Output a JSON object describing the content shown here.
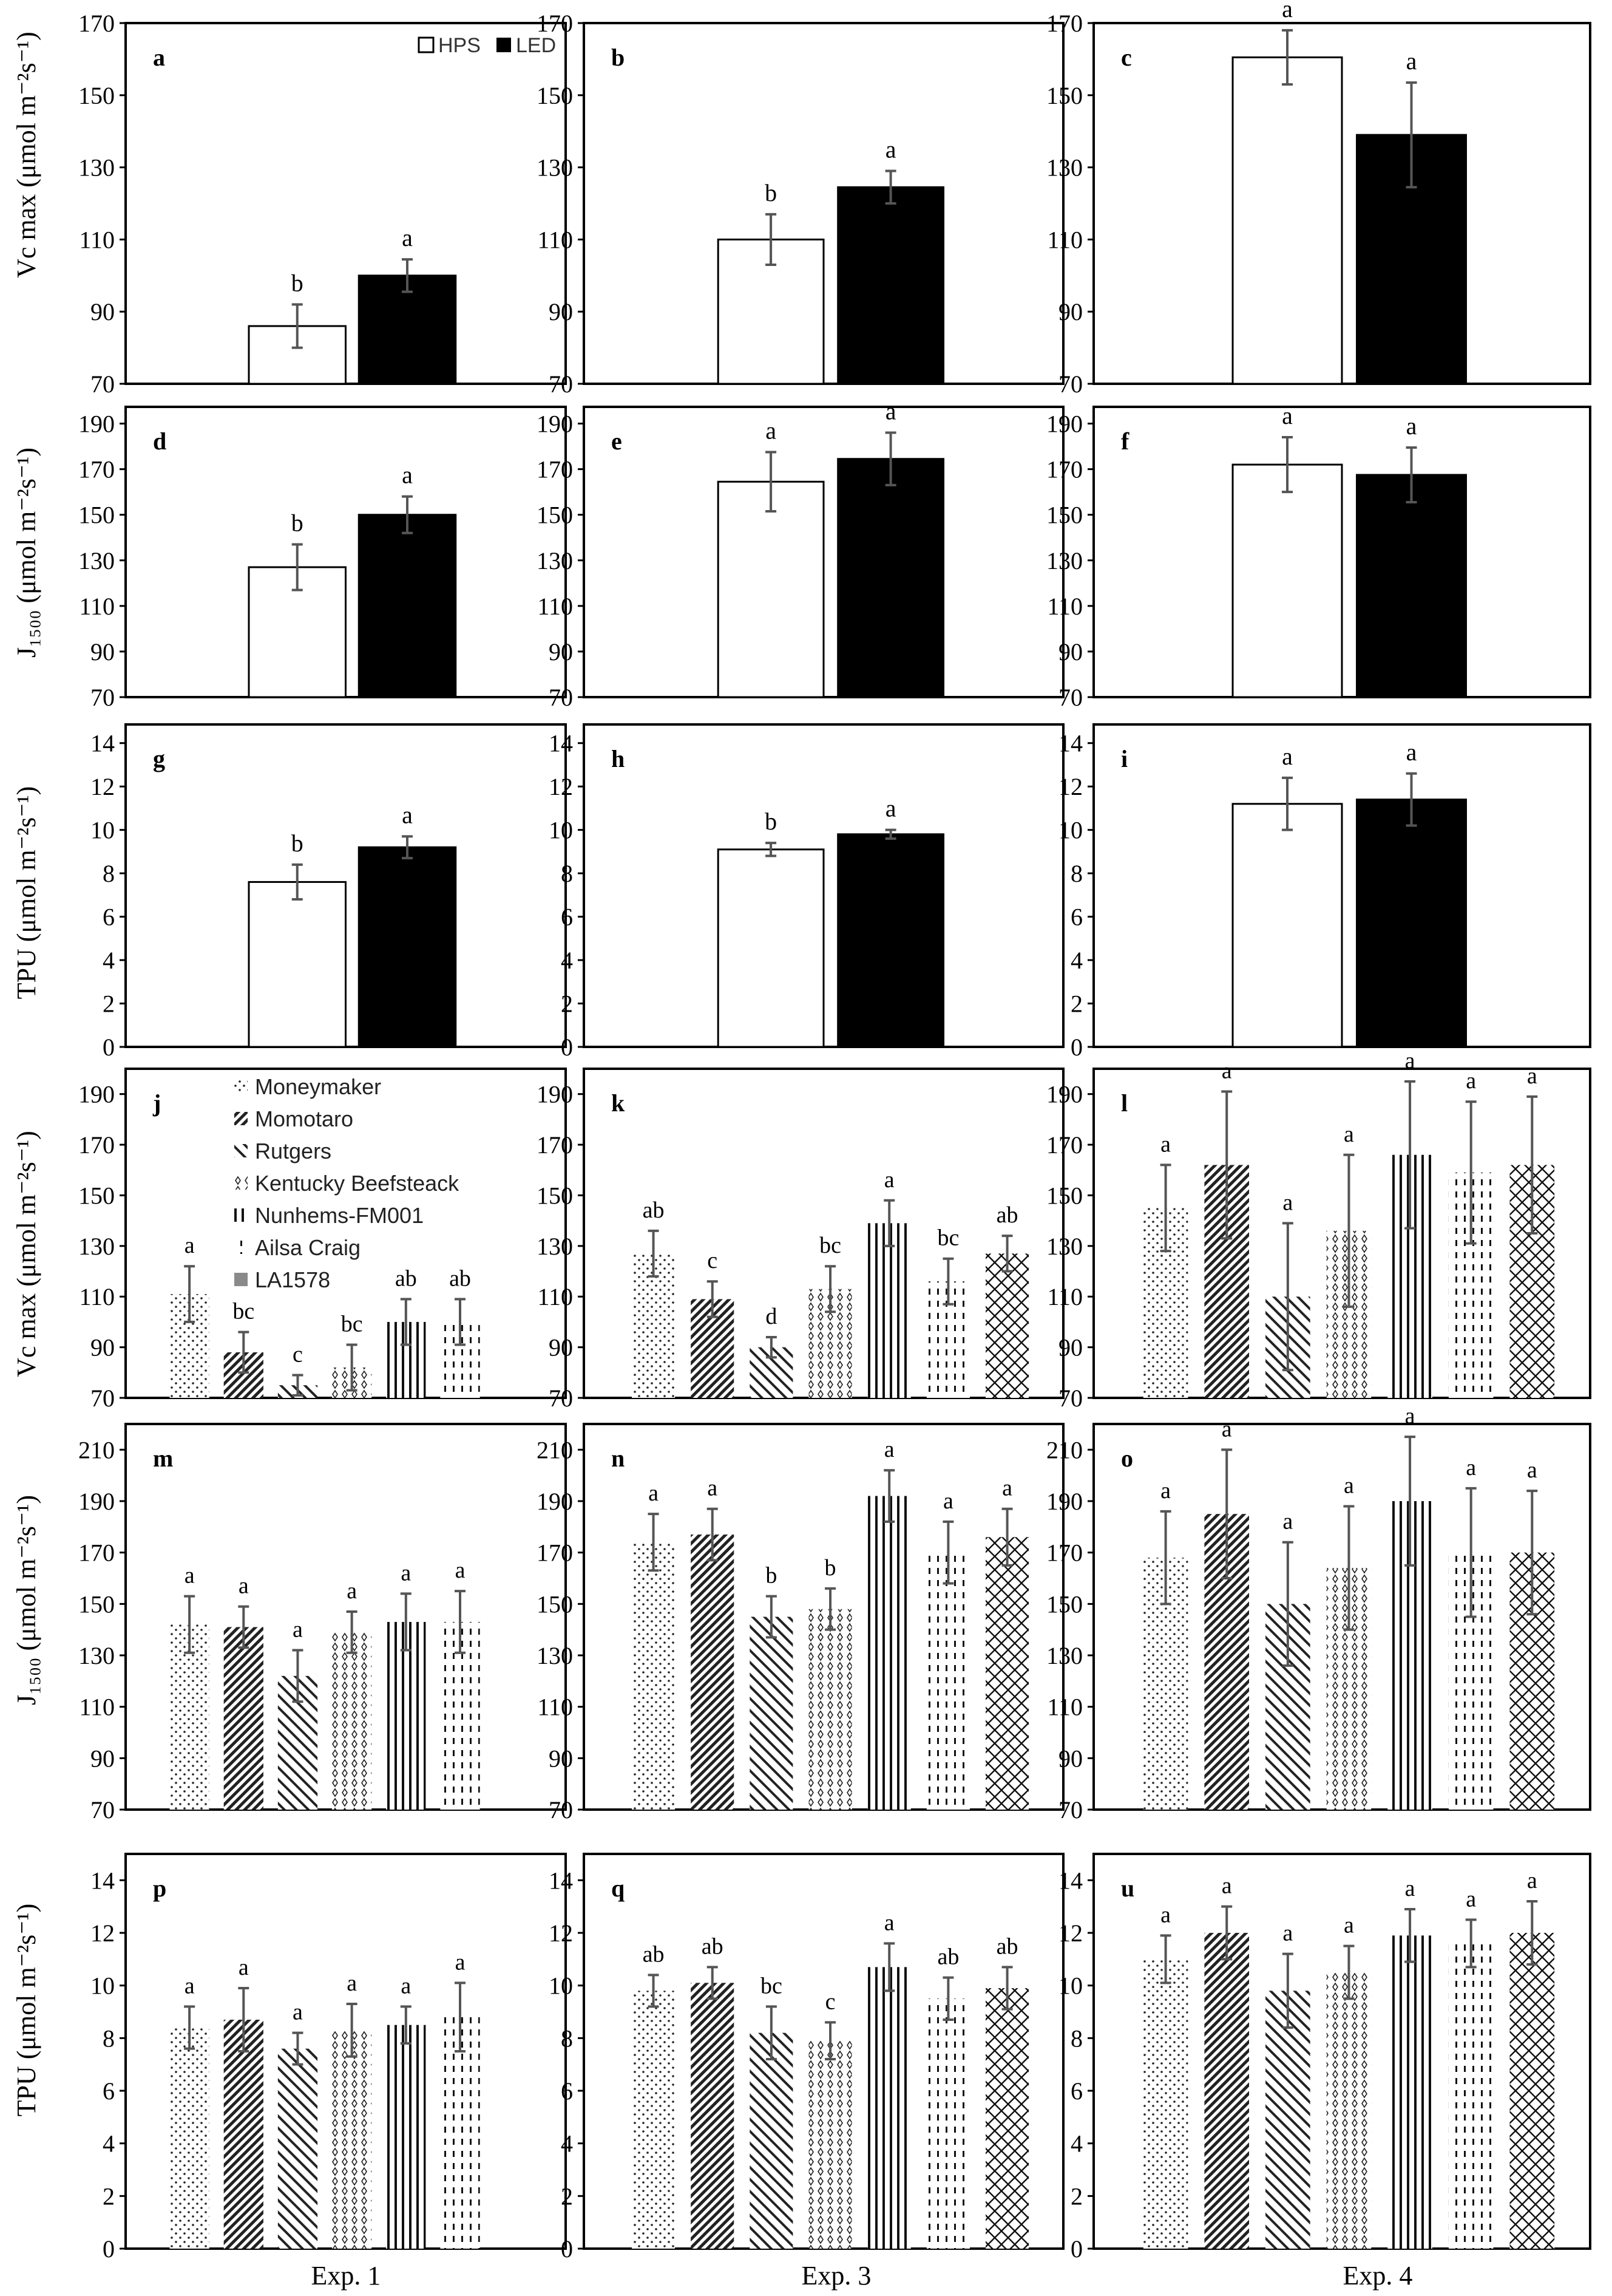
{
  "legend_light": {
    "hps": "HPS",
    "led": "LED"
  },
  "legend_cultivar": [
    {
      "label": "Moneymaker",
      "fill": "p-dots"
    },
    {
      "label": "Momotaro",
      "fill": "p-dense-diag"
    },
    {
      "label": "Rutgers",
      "fill": "p-wide-diag"
    },
    {
      "label": "Kentucky Beefsteack",
      "fill": "p-diamonds"
    },
    {
      "label": "Nunhems-FM001",
      "fill": "p-vlines"
    },
    {
      "label": "Ailsa Craig",
      "fill": "p-dashes"
    },
    {
      "label": "LA1578",
      "fill": "p-cross"
    }
  ],
  "x_labels": [
    "Exp. 1",
    "Exp. 3",
    "Exp. 4"
  ],
  "colors": {
    "hps": "#ffffff",
    "led": "#000000",
    "errorbar": "#555555"
  },
  "chart_data": [
    {
      "panel": "a",
      "type": "bar",
      "ylabel": "Vc max (μmol m⁻²s⁻¹)",
      "ylim": [
        70,
        170
      ],
      "yticks": [
        70,
        90,
        110,
        130,
        150,
        170
      ],
      "series": [
        {
          "name": "HPS",
          "values": [
            86
          ]
        },
        {
          "name": "LED",
          "values": [
            100
          ]
        }
      ],
      "errors": [
        6,
        4.5
      ],
      "letters": [
        "b",
        "a"
      ]
    },
    {
      "panel": "b",
      "type": "bar",
      "ylim": [
        70,
        170
      ],
      "series": [
        {
          "name": "HPS",
          "values": [
            110
          ]
        },
        {
          "name": "LED",
          "values": [
            124.5
          ]
        }
      ],
      "errors": [
        7,
        4.5
      ],
      "letters": [
        "b",
        "a"
      ]
    },
    {
      "panel": "c",
      "type": "bar",
      "ylim": [
        70,
        170
      ],
      "series": [
        {
          "name": "HPS",
          "values": [
            160.5
          ]
        },
        {
          "name": "LED",
          "values": [
            139
          ]
        }
      ],
      "errors": [
        7.5,
        14.5
      ],
      "letters": [
        "a",
        "a"
      ]
    },
    {
      "panel": "d",
      "type": "bar",
      "ylabel": "J₁₅₀₀ (μmol m⁻²s⁻¹)",
      "ylim": [
        70,
        200
      ],
      "yticks": [
        70,
        90,
        110,
        130,
        150,
        170,
        190
      ],
      "series": [
        {
          "name": "HPS",
          "values": [
            127
          ]
        },
        {
          "name": "LED",
          "values": [
            150
          ]
        }
      ],
      "errors": [
        10,
        8
      ],
      "letters": [
        "b",
        "a"
      ]
    },
    {
      "panel": "e",
      "type": "bar",
      "ylim": [
        70,
        200
      ],
      "series": [
        {
          "name": "HPS",
          "values": [
            164.5
          ]
        },
        {
          "name": "LED",
          "values": [
            174.5
          ]
        }
      ],
      "errors": [
        13,
        11.5
      ],
      "letters": [
        "a",
        "a"
      ]
    },
    {
      "panel": "f",
      "type": "bar",
      "ylim": [
        70,
        200
      ],
      "series": [
        {
          "name": "HPS",
          "values": [
            172
          ]
        },
        {
          "name": "LED",
          "values": [
            167.5
          ]
        }
      ],
      "errors": [
        12,
        12
      ],
      "letters": [
        "a",
        "a"
      ]
    },
    {
      "panel": "g",
      "type": "bar",
      "ylabel": "TPU (μmol m⁻²s⁻¹)",
      "ylim": [
        0,
        15
      ],
      "yticks": [
        0,
        2,
        4,
        6,
        8,
        10,
        12,
        14
      ],
      "series": [
        {
          "name": "HPS",
          "values": [
            7.6
          ]
        },
        {
          "name": "LED",
          "values": [
            9.2
          ]
        }
      ],
      "errors": [
        0.8,
        0.5
      ],
      "letters": [
        "b",
        "a"
      ]
    },
    {
      "panel": "h",
      "type": "bar",
      "ylim": [
        0,
        15
      ],
      "series": [
        {
          "name": "HPS",
          "values": [
            9.1
          ]
        },
        {
          "name": "LED",
          "values": [
            9.8
          ]
        }
      ],
      "errors": [
        0.3,
        0.2
      ],
      "letters": [
        "b",
        "a"
      ]
    },
    {
      "panel": "i",
      "type": "bar",
      "ylim": [
        0,
        15
      ],
      "series": [
        {
          "name": "HPS",
          "values": [
            11.2
          ]
        },
        {
          "name": "LED",
          "values": [
            11.4
          ]
        }
      ],
      "errors": [
        1.2,
        1.2
      ],
      "letters": [
        "a",
        "a"
      ]
    },
    {
      "panel": "j",
      "type": "bar",
      "ylabel": "Vc max (μmol m⁻²s⁻¹)",
      "ylim": [
        70,
        200
      ],
      "yticks": [
        70,
        90,
        110,
        130,
        150,
        170,
        190
      ],
      "categories": [
        "Moneymaker",
        "Momotaro",
        "Rutgers",
        "Kentucky Beefsteack",
        "Nunhems-FM001",
        "Ailsa Craig",
        "LA1578"
      ],
      "values": [
        111,
        88,
        75,
        82,
        100,
        100,
        70
      ],
      "errors": [
        11,
        8,
        4,
        9,
        9,
        9,
        0
      ],
      "letters": [
        "a",
        "bc",
        "c",
        "bc",
        "ab",
        "ab",
        ""
      ]
    },
    {
      "panel": "k",
      "type": "bar",
      "ylim": [
        70,
        200
      ],
      "categories": [
        "Moneymaker",
        "Momotaro",
        "Rutgers",
        "Kentucky Beefsteack",
        "Nunhems-FM001",
        "Ailsa Craig",
        "LA1578"
      ],
      "values": [
        127,
        109,
        90,
        113,
        139,
        116,
        127
      ],
      "errors": [
        9,
        7,
        4,
        9,
        9,
        9,
        7
      ],
      "letters": [
        "ab",
        "c",
        "d",
        "bc",
        "a",
        "bc",
        "ab"
      ]
    },
    {
      "panel": "l",
      "type": "bar",
      "ylim": [
        70,
        200
      ],
      "categories": [
        "Moneymaker",
        "Momotaro",
        "Rutgers",
        "Kentucky Beefsteack",
        "Nunhems-FM001",
        "Ailsa Craig",
        "LA1578"
      ],
      "values": [
        145,
        162,
        110,
        136,
        166,
        159,
        162
      ],
      "errors": [
        17,
        29,
        29,
        30,
        29,
        28,
        27
      ],
      "letters": [
        "a",
        "a",
        "a",
        "a",
        "a",
        "a",
        "a"
      ]
    },
    {
      "panel": "m",
      "type": "bar",
      "ylabel": "J₁₅₀₀ (μmol m⁻²s⁻¹)",
      "ylim": [
        70,
        220
      ],
      "yticks": [
        70,
        90,
        110,
        130,
        150,
        170,
        190,
        210
      ],
      "categories": [
        "Moneymaker",
        "Momotaro",
        "Rutgers",
        "Kentucky Beefsteack",
        "Nunhems-FM001",
        "Ailsa Craig",
        "LA1578"
      ],
      "values": [
        142,
        141,
        122,
        139,
        143,
        143,
        70
      ],
      "errors": [
        11,
        8,
        10,
        8,
        11,
        12,
        0
      ],
      "letters": [
        "a",
        "a",
        "a",
        "a",
        "a",
        "a",
        ""
      ]
    },
    {
      "panel": "n",
      "type": "bar",
      "ylim": [
        70,
        220
      ],
      "categories": [
        "Moneymaker",
        "Momotaro",
        "Rutgers",
        "Kentucky Beefsteack",
        "Nunhems-FM001",
        "Ailsa Craig",
        "LA1578"
      ],
      "values": [
        174,
        177,
        145,
        148,
        192,
        170,
        176
      ],
      "errors": [
        11,
        10,
        8,
        8,
        10,
        12,
        11
      ],
      "letters": [
        "a",
        "a",
        "b",
        "b",
        "a",
        "a",
        "a"
      ]
    },
    {
      "panel": "o",
      "type": "bar",
      "ylim": [
        70,
        220
      ],
      "categories": [
        "Moneymaker",
        "Momotaro",
        "Rutgers",
        "Kentucky Beefsteack",
        "Nunhems-FM001",
        "Ailsa Craig",
        "LA1578"
      ],
      "values": [
        168,
        185,
        150,
        164,
        190,
        170,
        170
      ],
      "errors": [
        18,
        25,
        24,
        24,
        25,
        25,
        24
      ],
      "letters": [
        "a",
        "a",
        "a",
        "a",
        "a",
        "a",
        "a"
      ]
    },
    {
      "panel": "p",
      "type": "bar",
      "ylabel": "TPU (μmol m⁻²s⁻¹)",
      "ylim": [
        0,
        15
      ],
      "yticks": [
        0,
        2,
        4,
        6,
        8,
        10,
        12,
        14
      ],
      "categories": [
        "Moneymaker",
        "Momotaro",
        "Rutgers",
        "Kentucky Beefsteack",
        "Nunhems-FM001",
        "Ailsa Craig",
        "LA1578"
      ],
      "values": [
        8.4,
        8.7,
        7.6,
        8.3,
        8.5,
        8.8,
        0
      ],
      "errors": [
        0.8,
        1.2,
        0.6,
        1.0,
        0.7,
        1.3,
        0
      ],
      "letters": [
        "a",
        "a",
        "a",
        "a",
        "a",
        "a",
        ""
      ]
    },
    {
      "panel": "q",
      "type": "bar",
      "ylim": [
        0,
        15
      ],
      "categories": [
        "Moneymaker",
        "Momotaro",
        "Rutgers",
        "Kentucky Beefsteack",
        "Nunhems-FM001",
        "Ailsa Craig",
        "LA1578"
      ],
      "values": [
        9.8,
        10.1,
        8.2,
        7.9,
        10.7,
        9.5,
        9.9
      ],
      "errors": [
        0.6,
        0.6,
        1.0,
        0.7,
        0.9,
        0.8,
        0.8
      ],
      "letters": [
        "ab",
        "ab",
        "bc",
        "c",
        "a",
        "ab",
        "ab"
      ]
    },
    {
      "panel": "u",
      "type": "bar",
      "ylim": [
        0,
        15
      ],
      "categories": [
        "Moneymaker",
        "Momotaro",
        "Rutgers",
        "Kentucky Beefsteack",
        "Nunhems-FM001",
        "Ailsa Craig",
        "LA1578"
      ],
      "values": [
        11.0,
        12.0,
        9.8,
        10.5,
        11.9,
        11.6,
        12.0
      ],
      "errors": [
        0.9,
        1.0,
        1.4,
        1.0,
        1.0,
        0.9,
        1.2
      ],
      "letters": [
        "a",
        "a",
        "a",
        "a",
        "a",
        "a",
        "a"
      ]
    }
  ]
}
